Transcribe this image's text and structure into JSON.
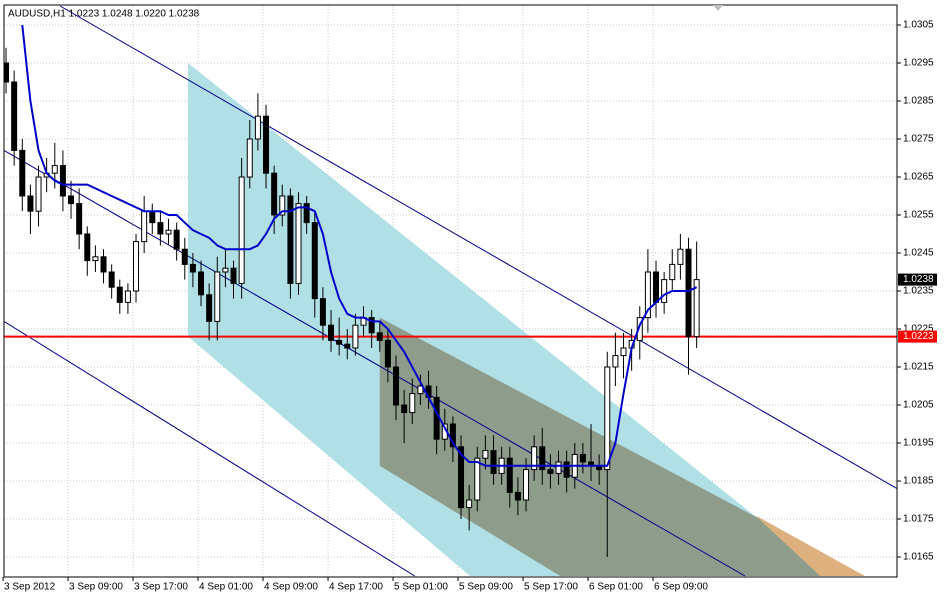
{
  "chart_data": {
    "type": "candlestick",
    "title": "AUDUSD,H1  1.0223 1.0248 1.0220 1.0238",
    "categories": [
      "3 Sep 2012",
      null,
      null,
      null,
      null,
      null,
      null,
      null,
      "3 Sep 09:00",
      null,
      null,
      null,
      null,
      null,
      null,
      null,
      "3 Sep 17:00",
      null,
      null,
      null,
      null,
      null,
      null,
      null,
      "4 Sep 01:00",
      null,
      null,
      null,
      null,
      null,
      null,
      null,
      "4 Sep 09:00",
      null,
      null,
      null,
      null,
      null,
      null,
      null,
      "4 Sep 17:00",
      null,
      null,
      null,
      null,
      null,
      null,
      null,
      "5 Sep 01:00",
      null,
      null,
      null,
      null,
      null,
      null,
      null,
      "5 Sep 09:00",
      null,
      null,
      null,
      null,
      null,
      null,
      null,
      "5 Sep 17:00",
      null,
      null,
      null,
      null,
      null,
      null,
      null,
      "6 Sep 01:00",
      null,
      null,
      null,
      null,
      null,
      null,
      null,
      "6 Sep 09:00",
      null,
      null,
      null,
      null,
      null
    ],
    "open": [
      1.0295,
      1.029,
      1.0272,
      1.026,
      1.0256,
      1.0265,
      1.0266,
      1.0268,
      1.026,
      1.0258,
      1.025,
      1.0243,
      1.0244,
      1.024,
      1.0236,
      1.0232,
      1.0235,
      1.0248,
      1.0256,
      1.0253,
      1.025,
      1.0251,
      1.0246,
      1.0242,
      1.024,
      1.0234,
      1.0227,
      1.024,
      1.0241,
      1.0237,
      1.0265,
      1.0275,
      1.0281,
      1.0266,
      1.0255,
      1.026,
      1.0237,
      1.0258,
      1.0253,
      1.0233,
      1.0226,
      1.0222,
      1.0221,
      1.022,
      1.0226,
      1.0228,
      1.0224,
      1.0222,
      1.0215,
      1.0205,
      1.0203,
      1.0208,
      1.021,
      1.0207,
      1.0196,
      1.02,
      1.0194,
      1.0178,
      1.018,
      1.0191,
      1.0193,
      1.0187,
      1.0191,
      1.0182,
      1.018,
      1.0188,
      1.0194,
      1.0188,
      1.0187,
      1.019,
      1.0186,
      1.0192,
      1.019,
      1.0189,
      1.0188,
      1.0215,
      1.0218,
      1.022,
      1.0222,
      1.0228,
      1.024,
      1.0232,
      1.0238,
      1.0242,
      1.0246,
      1.0223
    ],
    "high": [
      1.0299,
      1.0293,
      1.0275,
      1.0263,
      1.0268,
      1.027,
      1.0274,
      1.0272,
      1.0264,
      1.0262,
      1.0252,
      1.0247,
      1.0246,
      1.0242,
      1.0238,
      1.0237,
      1.025,
      1.026,
      1.0258,
      1.0256,
      1.0254,
      1.0253,
      1.0249,
      1.0245,
      1.0243,
      1.0237,
      1.0244,
      1.0246,
      1.0243,
      1.027,
      1.028,
      1.0287,
      1.0284,
      1.0268,
      1.0263,
      1.0262,
      1.0261,
      1.026,
      1.0256,
      1.0236,
      1.023,
      1.0228,
      1.0225,
      1.0229,
      1.0231,
      1.023,
      1.0227,
      1.0225,
      1.0218,
      1.0209,
      1.0212,
      1.0213,
      1.0214,
      1.021,
      1.0204,
      1.0202,
      1.0197,
      1.0184,
      1.0194,
      1.0197,
      1.0197,
      1.0194,
      1.0194,
      1.0186,
      1.0191,
      1.0197,
      1.0199,
      1.0192,
      1.0193,
      1.0193,
      1.0195,
      1.0195,
      1.02,
      1.0192,
      1.0219,
      1.0224,
      1.0224,
      1.0225,
      1.0231,
      1.0246,
      1.0243,
      1.024,
      1.0246,
      1.025,
      1.0249,
      1.0248
    ],
    "low": [
      1.0287,
      1.0268,
      1.0256,
      1.025,
      1.0252,
      1.0261,
      1.0262,
      1.0256,
      1.0254,
      1.0246,
      1.0239,
      1.024,
      1.0237,
      1.0233,
      1.0229,
      1.0229,
      1.0232,
      1.0245,
      1.025,
      1.0247,
      1.0247,
      1.0243,
      1.0238,
      1.0236,
      1.0231,
      1.0222,
      1.0222,
      1.0236,
      1.0233,
      1.0233,
      1.0262,
      1.0272,
      1.0262,
      1.025,
      1.0252,
      1.0233,
      1.0234,
      1.025,
      1.0228,
      1.0222,
      1.0219,
      1.0218,
      1.0217,
      1.0218,
      1.0223,
      1.022,
      1.0219,
      1.0211,
      1.0201,
      1.0195,
      1.02,
      1.0205,
      1.0204,
      1.0192,
      1.0193,
      1.019,
      1.0175,
      1.0172,
      1.0177,
      1.0188,
      1.0184,
      1.0184,
      1.0178,
      1.0176,
      1.0177,
      1.0185,
      1.0184,
      1.0183,
      1.0184,
      1.0182,
      1.0183,
      1.0187,
      1.0185,
      1.0184,
      1.0165,
      1.021,
      1.0212,
      1.0214,
      1.0217,
      1.0224,
      1.0228,
      1.0229,
      1.0235,
      1.0238,
      1.0213,
      1.022
    ],
    "close": [
      1.029,
      1.0272,
      1.026,
      1.0256,
      1.0265,
      1.0266,
      1.0268,
      1.026,
      1.0258,
      1.025,
      1.0243,
      1.0244,
      1.024,
      1.0236,
      1.0232,
      1.0235,
      1.0248,
      1.0256,
      1.0253,
      1.025,
      1.0251,
      1.0246,
      1.0242,
      1.024,
      1.0234,
      1.0227,
      1.024,
      1.0241,
      1.0237,
      1.0265,
      1.0275,
      1.0281,
      1.0266,
      1.0255,
      1.026,
      1.0237,
      1.0258,
      1.0253,
      1.0233,
      1.0226,
      1.0222,
      1.0221,
      1.022,
      1.0226,
      1.0228,
      1.0224,
      1.0222,
      1.0215,
      1.0205,
      1.0203,
      1.0208,
      1.021,
      1.0207,
      1.0196,
      1.02,
      1.0194,
      1.0178,
      1.018,
      1.0191,
      1.0193,
      1.0187,
      1.0191,
      1.0182,
      1.018,
      1.0188,
      1.0194,
      1.0188,
      1.0187,
      1.019,
      1.0186,
      1.0192,
      1.019,
      1.0189,
      1.0188,
      1.0215,
      1.0218,
      1.022,
      1.0222,
      1.0228,
      1.024,
      1.0232,
      1.0238,
      1.0242,
      1.0246,
      1.0223,
      1.0238
    ],
    "ma": {
      "color": "#0000cc",
      "values": [
        null,
        null,
        1.0305,
        1.0285,
        1.0272,
        1.0266,
        1.0264,
        1.0263,
        1.0263,
        1.0263,
        1.0263,
        1.0262,
        1.0261,
        1.026,
        1.0259,
        1.0258,
        1.0257,
        1.0256,
        1.0256,
        1.0256,
        1.0255,
        1.0255,
        1.0253,
        1.0251,
        1.025,
        1.0249,
        1.0247,
        1.0246,
        1.0246,
        1.0246,
        1.0246,
        1.0247,
        1.025,
        1.0254,
        1.0256,
        1.0256,
        1.0257,
        1.0257,
        1.0256,
        1.025,
        1.024,
        1.0233,
        1.0229,
        1.0228,
        1.0228,
        1.0227,
        1.0227,
        1.0225,
        1.0222,
        1.0219,
        1.0215,
        1.0211,
        1.0207,
        1.0203,
        1.0199,
        1.0195,
        1.0192,
        1.019,
        1.019,
        1.0189,
        1.0189,
        1.0189,
        1.0189,
        1.0189,
        1.0189,
        1.0189,
        1.0189,
        1.0189,
        1.0189,
        1.0189,
        1.0189,
        1.0189,
        1.0189,
        1.0189,
        1.0189,
        1.0195,
        1.0208,
        1.022,
        1.0226,
        1.023,
        1.0232,
        1.0234,
        1.0235,
        1.0235,
        1.0235,
        1.0236
      ]
    },
    "polygons": [
      {
        "color": "#b0e0e6",
        "x": [
          22.4,
          101.4,
          57.1,
          22.4
        ],
        "y": [
          1.0295,
          1.016,
          1.016,
          1.0223
        ]
      },
      {
        "color": "#8e9c8c",
        "x": [
          46.0,
          92.8,
          101.4,
          68.2,
          46.0
        ],
        "y": [
          1.0228,
          1.0175,
          1.016,
          1.016,
          1.0189
        ]
      },
      {
        "color": "#deb07e",
        "x": [
          92.2,
          105.7,
          100.2
        ],
        "y": [
          1.0176,
          1.016,
          1.016
        ]
      }
    ],
    "trendlines": [
      {
        "color": "#00008b",
        "x": [
          6.65,
          109.66
        ],
        "y": [
          1.031,
          1.0183
        ]
      },
      {
        "color": "#00008b",
        "x": [
          -0.25,
          90.95
        ],
        "y": [
          1.0272,
          1.016
        ]
      },
      {
        "color": "#00008b",
        "x": [
          -0.25,
          50.3
        ],
        "y": [
          1.0227,
          1.016
        ]
      }
    ],
    "level": {
      "value": 1.0223,
      "color": "#ff0000"
    },
    "last_price": 1.0238,
    "xlim": [
      -0.25,
      109.66
    ],
    "ylim": [
      1.016,
      1.031
    ],
    "yticks": [
      1.0305,
      1.0295,
      1.0285,
      1.0275,
      1.0265,
      1.0255,
      1.0245,
      1.0235,
      1.0225,
      1.0215,
      1.0205,
      1.0195,
      1.0185,
      1.0175,
      1.0165
    ],
    "grid": true
  }
}
